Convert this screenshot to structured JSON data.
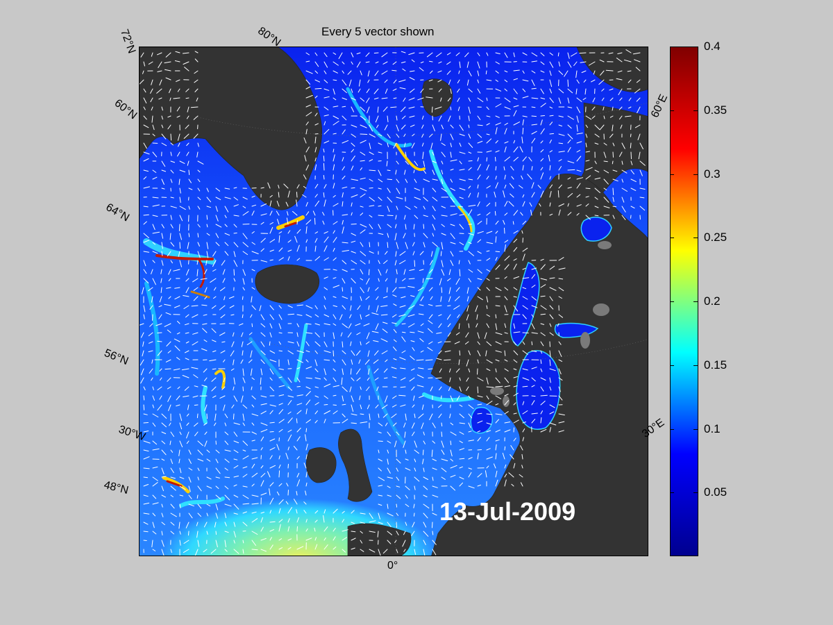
{
  "title": "Every 5 vector shown",
  "date_label": "13-Jul-2009",
  "graticule_labels": {
    "lat72": "72°N",
    "lat80": "80°N",
    "lat60": "60°N",
    "lat64": "64°N",
    "lat56": "56°N",
    "lon30w": "30°W",
    "lat48": "48°N",
    "lon0": "0°",
    "lon30e": "30°E",
    "lon60e": "60°E"
  },
  "colorbar": {
    "min": 0,
    "max": 0.4,
    "ticks": [
      "0.4",
      "0.35",
      "0.3",
      "0.25",
      "0.2",
      "0.15",
      "0.1",
      "0.05"
    ],
    "colormap": [
      "#00008f",
      "#0000ff",
      "#00ffff",
      "#ffff00",
      "#ff0000",
      "#800000"
    ]
  },
  "colors": {
    "land": "#333333",
    "ocean_low": "#0a1fe6",
    "ocean_mid": "#1e6cff",
    "jet": "#00e5ff",
    "warm": "#ffe000",
    "hot": "#d81c00",
    "lake": "#7a7a7a",
    "vector": "#ffffff",
    "background": "#c8c8c8"
  }
}
